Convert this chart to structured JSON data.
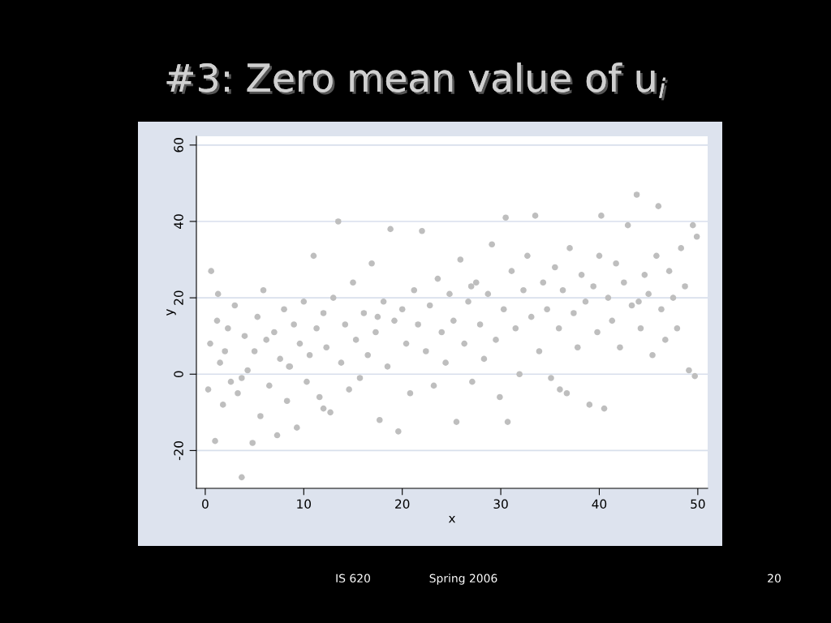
{
  "chart_data": {
    "type": "scatter",
    "title": "#3: Zero mean value of u$_{i}$",
    "xlabel": "x",
    "ylabel": "y",
    "x": [
      0.3,
      0.5,
      0.6,
      1.0,
      1.2,
      1.5,
      1.8,
      2.0,
      2.3,
      2.6,
      3.0,
      3.3,
      3.7,
      4.0,
      4.3,
      4.8,
      5.0,
      5.3,
      5.6,
      5.9,
      6.2,
      6.5,
      7.0,
      7.3,
      7.6,
      8.0,
      8.3,
      8.6,
      9.0,
      9.3,
      9.6,
      10.0,
      10.3,
      10.6,
      11.0,
      11.3,
      11.6,
      12.0,
      12.3,
      12.7,
      13.0,
      13.5,
      13.8,
      14.2,
      14.6,
      15.0,
      15.3,
      15.7,
      16.1,
      16.5,
      16.9,
      17.3,
      17.7,
      18.1,
      18.5,
      18.8,
      19.2,
      19.6,
      20.0,
      20.4,
      20.8,
      21.2,
      21.6,
      22.0,
      22.4,
      22.8,
      23.2,
      23.6,
      24.0,
      24.4,
      24.8,
      25.2,
      25.5,
      25.9,
      26.3,
      26.7,
      27.1,
      27.5,
      27.9,
      28.3,
      28.7,
      29.1,
      29.5,
      29.9,
      30.3,
      30.5,
      30.7,
      31.1,
      31.5,
      31.9,
      32.3,
      32.7,
      33.1,
      33.5,
      33.9,
      34.3,
      34.7,
      35.1,
      35.5,
      35.9,
      36.3,
      36.7,
      37.0,
      37.4,
      37.8,
      38.2,
      38.6,
      39.0,
      39.4,
      39.8,
      40.0,
      40.2,
      40.5,
      40.9,
      41.3,
      41.7,
      42.1,
      42.5,
      42.9,
      43.3,
      43.8,
      44.2,
      44.6,
      45.0,
      45.4,
      45.8,
      46.0,
      46.3,
      46.7,
      47.1,
      47.5,
      47.9,
      48.3,
      48.7,
      49.1,
      49.5,
      49.7,
      49.9,
      1.3,
      3.7,
      8.5,
      12.0,
      17.5,
      27.0,
      36.0,
      44.0
    ],
    "values": [
      -4,
      8,
      27,
      -17.5,
      14,
      3,
      -8,
      6,
      12,
      -2,
      18,
      -5,
      -27,
      10,
      1,
      -18,
      6,
      15,
      -11,
      22,
      9,
      -3,
      11,
      -16,
      4,
      17,
      -7,
      2,
      13,
      -14,
      8,
      19,
      -2,
      5,
      31,
      12,
      -6,
      16,
      7,
      -10,
      20,
      40,
      3,
      13,
      -4,
      24,
      9,
      -1,
      16,
      5,
      29,
      11,
      -12,
      19,
      2,
      38,
      14,
      -15,
      17,
      8,
      -5,
      22,
      13,
      37.5,
      6,
      18,
      -3,
      25,
      11,
      3,
      21,
      14,
      -12.5,
      30,
      8,
      19,
      -2,
      24,
      13,
      4,
      21,
      34,
      9,
      -6,
      17,
      41,
      -12.5,
      27,
      12,
      0,
      22,
      31,
      15,
      41.5,
      6,
      24,
      17,
      -1,
      28,
      12,
      22,
      -5,
      33,
      16,
      7,
      26,
      19,
      -8,
      23,
      11,
      31,
      41.5,
      -9,
      20,
      14,
      29,
      7,
      24,
      39,
      18,
      47,
      12,
      26,
      21,
      5,
      31,
      44,
      17,
      9,
      27,
      20,
      12,
      33,
      23,
      1,
      39,
      -0.5,
      36,
      21,
      -1,
      2,
      -9,
      15,
      23,
      -4,
      19
    ],
    "xlim": [
      -0.9,
      51
    ],
    "ylim": [
      -29.9,
      62.3
    ],
    "xticks": [
      0,
      10,
      20,
      30,
      40,
      50
    ],
    "yticks": [
      -20,
      0,
      20,
      40,
      60
    ],
    "color": "#bebebe",
    "marker": "circle",
    "grid": "y",
    "annotations": [
      "IS 620",
      "Spring 2006",
      "20"
    ]
  }
}
